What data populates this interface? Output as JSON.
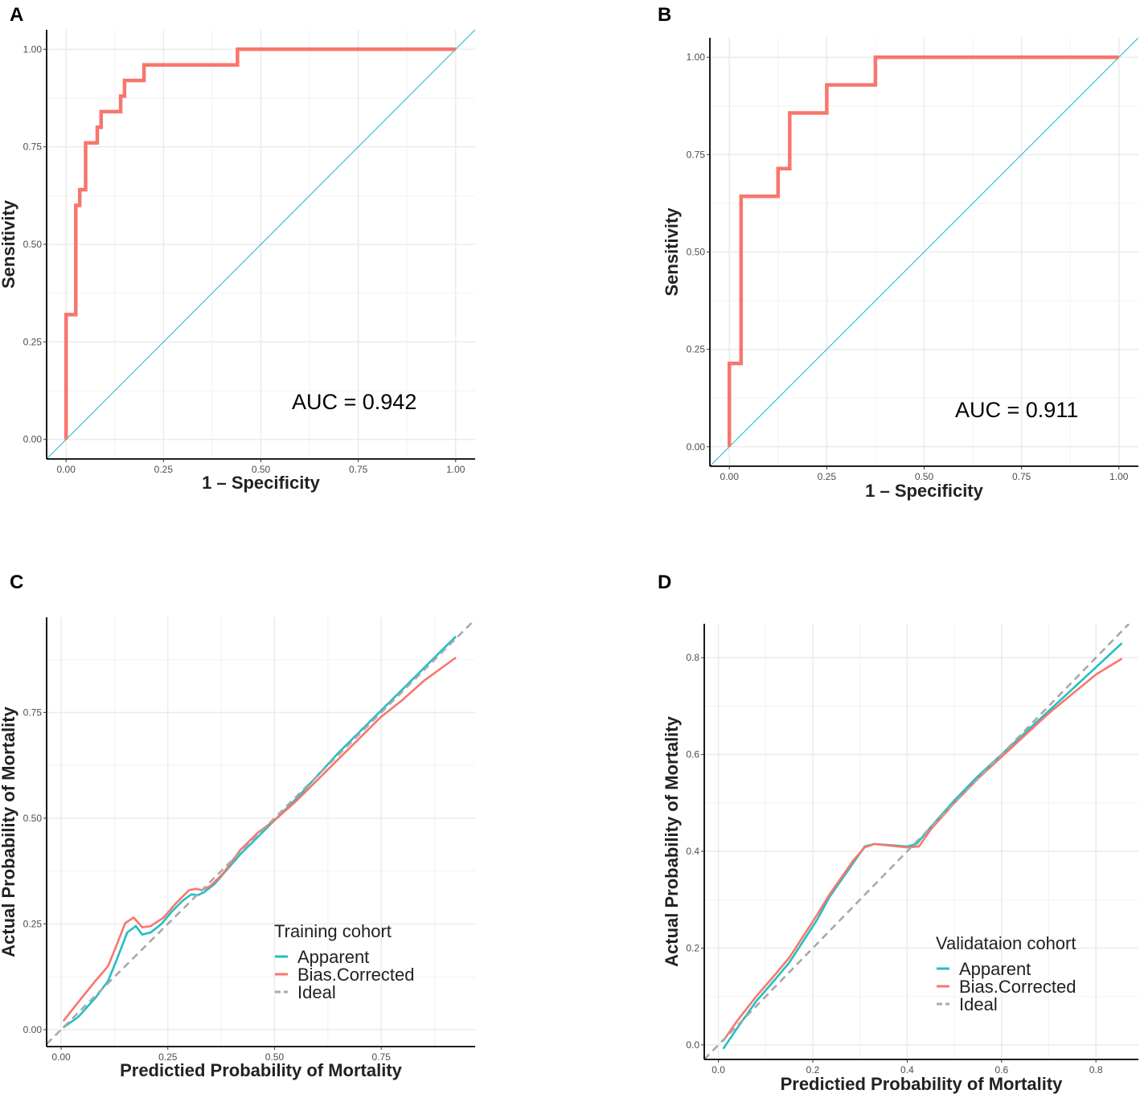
{
  "chart_data": [
    {
      "panel": "A",
      "type": "line",
      "title": "",
      "xlabel": "1 – Specificity",
      "ylabel": "Sensitivity",
      "xlim": [
        -0.05,
        1.05
      ],
      "ylim": [
        -0.05,
        1.05
      ],
      "xticks": [
        0,
        0.25,
        0.5,
        0.75,
        1
      ],
      "xtick_labels": [
        "0.00",
        "0.25",
        "0.50",
        "0.75",
        "1.00"
      ],
      "yticks": [
        0,
        0.25,
        0.5,
        0.75,
        1
      ],
      "ytick_labels": [
        "0.00",
        "0.25",
        "0.50",
        "0.75",
        "1.00"
      ],
      "grid": true,
      "annotation": "AUC = 0.942",
      "series": [
        {
          "name": "ROC",
          "color": "#F8766D",
          "style": "solid",
          "weight": "thick",
          "x": [
            0,
            0,
            0.025,
            0.025,
            0.035,
            0.035,
            0.05,
            0.05,
            0.08,
            0.08,
            0.09,
            0.09,
            0.14,
            0.14,
            0.15,
            0.15,
            0.2,
            0.2,
            0.44,
            0.44,
            1
          ],
          "y": [
            0,
            0.32,
            0.32,
            0.6,
            0.6,
            0.64,
            0.64,
            0.76,
            0.76,
            0.8,
            0.8,
            0.84,
            0.84,
            0.88,
            0.88,
            0.92,
            0.92,
            0.96,
            0.96,
            1,
            1
          ]
        },
        {
          "name": "Reference",
          "color": "#22BFC4",
          "style": "solid",
          "weight": "thin",
          "x": [
            -0.05,
            1.05
          ],
          "y": [
            -0.05,
            1.05
          ]
        }
      ]
    },
    {
      "panel": "B",
      "type": "line",
      "title": "",
      "xlabel": "1 – Specificity",
      "ylabel": "Sensitivity",
      "xlim": [
        -0.05,
        1.05
      ],
      "ylim": [
        -0.05,
        1.05
      ],
      "xticks": [
        0,
        0.25,
        0.5,
        0.75,
        1
      ],
      "xtick_labels": [
        "0.00",
        "0.25",
        "0.50",
        "0.75",
        "1.00"
      ],
      "yticks": [
        0,
        0.25,
        0.5,
        0.75,
        1
      ],
      "ytick_labels": [
        "0.00",
        "0.25",
        "0.50",
        "0.75",
        "1.00"
      ],
      "grid": true,
      "annotation": "AUC = 0.911",
      "series": [
        {
          "name": "ROC",
          "color": "#F8766D",
          "style": "solid",
          "weight": "thick",
          "x": [
            0,
            0,
            0.03,
            0.03,
            0.125,
            0.125,
            0.155,
            0.155,
            0.25,
            0.25,
            0.375,
            0.375,
            1
          ],
          "y": [
            0,
            0.214,
            0.214,
            0.643,
            0.643,
            0.714,
            0.714,
            0.857,
            0.857,
            0.929,
            0.929,
            1,
            1
          ]
        },
        {
          "name": "Reference",
          "color": "#22BFC4",
          "style": "solid",
          "weight": "thin",
          "x": [
            -0.05,
            1.05
          ],
          "y": [
            -0.05,
            1.05
          ]
        }
      ]
    },
    {
      "panel": "C",
      "type": "line",
      "title": "",
      "xlabel": "Predictied Probability of Mortality",
      "ylabel": "Actual Probability of Mortality",
      "xlim": [
        -0.034,
        0.97
      ],
      "ylim": [
        -0.04,
        0.975
      ],
      "xticks": [
        0,
        0.25,
        0.5,
        0.75
      ],
      "xtick_labels": [
        "0.00",
        "0.25",
        "0.50",
        "0.75"
      ],
      "yticks": [
        0,
        0.25,
        0.5,
        0.75
      ],
      "ytick_labels": [
        "0.00",
        "0.25",
        "0.50",
        "0.75"
      ],
      "grid": true,
      "legend": {
        "title": "Training cohort",
        "position": "bottom-right",
        "entries": [
          "Apparent",
          "Bias.Corrected",
          "Ideal"
        ]
      },
      "series": [
        {
          "name": "Apparent",
          "color": "#22BFC4",
          "style": "solid",
          "x": [
            0.005,
            0.04,
            0.08,
            0.11,
            0.13,
            0.155,
            0.175,
            0.19,
            0.21,
            0.235,
            0.26,
            0.285,
            0.305,
            0.32,
            0.335,
            0.36,
            0.39,
            0.42,
            0.46,
            0.5,
            0.55,
            0.6,
            0.65,
            0.7,
            0.75,
            0.8,
            0.85,
            0.925
          ],
          "y": [
            0.005,
            0.03,
            0.075,
            0.115,
            0.165,
            0.23,
            0.245,
            0.225,
            0.23,
            0.25,
            0.28,
            0.305,
            0.32,
            0.318,
            0.325,
            0.345,
            0.38,
            0.415,
            0.455,
            0.495,
            0.545,
            0.6,
            0.655,
            0.705,
            0.755,
            0.805,
            0.855,
            0.93
          ]
        },
        {
          "name": "Bias.Corrected",
          "color": "#F8766D",
          "style": "solid",
          "x": [
            0.005,
            0.04,
            0.08,
            0.11,
            0.13,
            0.15,
            0.17,
            0.19,
            0.21,
            0.24,
            0.27,
            0.3,
            0.315,
            0.33,
            0.35,
            0.38,
            0.42,
            0.46,
            0.5,
            0.55,
            0.6,
            0.65,
            0.7,
            0.75,
            0.8,
            0.85,
            0.925
          ],
          "y": [
            0.02,
            0.065,
            0.115,
            0.15,
            0.2,
            0.252,
            0.265,
            0.242,
            0.245,
            0.265,
            0.3,
            0.33,
            0.333,
            0.33,
            0.34,
            0.37,
            0.425,
            0.465,
            0.495,
            0.54,
            0.59,
            0.64,
            0.69,
            0.74,
            0.78,
            0.825,
            0.88
          ]
        },
        {
          "name": "Ideal",
          "color": "#A9A9A9",
          "style": "dashed",
          "x": [
            -0.034,
            0.97
          ],
          "y": [
            -0.034,
            0.97
          ]
        }
      ]
    },
    {
      "panel": "D",
      "type": "line",
      "title": "",
      "xlabel": "Predictied Probability of Mortality",
      "ylabel": "Actual Probability of Mortality",
      "xlim": [
        -0.03,
        0.89
      ],
      "ylim": [
        -0.03,
        0.87
      ],
      "xticks": [
        0,
        0.2,
        0.4,
        0.6,
        0.8
      ],
      "xtick_labels": [
        "0.0",
        "0.2",
        "0.4",
        "0.6",
        "0.8"
      ],
      "yticks": [
        0,
        0.2,
        0.4,
        0.6,
        0.8
      ],
      "ytick_labels": [
        "0.0",
        "0.2",
        "0.4",
        "0.6",
        "0.8"
      ],
      "grid": true,
      "legend": {
        "title": "Validataion cohort",
        "position": "bottom-right",
        "entries": [
          "Apparent",
          "Bias.Corrected",
          "Ideal"
        ]
      },
      "series": [
        {
          "name": "Apparent",
          "color": "#22BFC4",
          "style": "solid",
          "x": [
            0.01,
            0.04,
            0.08,
            0.12,
            0.15,
            0.18,
            0.21,
            0.235,
            0.26,
            0.285,
            0.31,
            0.33,
            0.36,
            0.4,
            0.42,
            0.45,
            0.5,
            0.55,
            0.6,
            0.65,
            0.7,
            0.75,
            0.8,
            0.855
          ],
          "y": [
            -0.008,
            0.035,
            0.09,
            0.135,
            0.17,
            0.215,
            0.26,
            0.305,
            0.34,
            0.375,
            0.41,
            0.415,
            0.413,
            0.41,
            0.415,
            0.45,
            0.505,
            0.555,
            0.6,
            0.645,
            0.69,
            0.735,
            0.78,
            0.83
          ]
        },
        {
          "name": "Bias.Corrected",
          "color": "#F8766D",
          "style": "solid",
          "x": [
            0.01,
            0.04,
            0.08,
            0.12,
            0.15,
            0.18,
            0.21,
            0.235,
            0.26,
            0.285,
            0.31,
            0.33,
            0.36,
            0.4,
            0.425,
            0.45,
            0.5,
            0.55,
            0.6,
            0.65,
            0.7,
            0.75,
            0.8,
            0.855
          ],
          "y": [
            0.008,
            0.05,
            0.1,
            0.145,
            0.18,
            0.225,
            0.27,
            0.31,
            0.345,
            0.38,
            0.408,
            0.415,
            0.412,
            0.408,
            0.41,
            0.445,
            0.5,
            0.55,
            0.595,
            0.64,
            0.685,
            0.725,
            0.765,
            0.798
          ]
        },
        {
          "name": "Ideal",
          "color": "#A9A9A9",
          "style": "dashed",
          "x": [
            -0.03,
            0.87
          ],
          "y": [
            -0.03,
            0.87
          ]
        }
      ]
    }
  ]
}
